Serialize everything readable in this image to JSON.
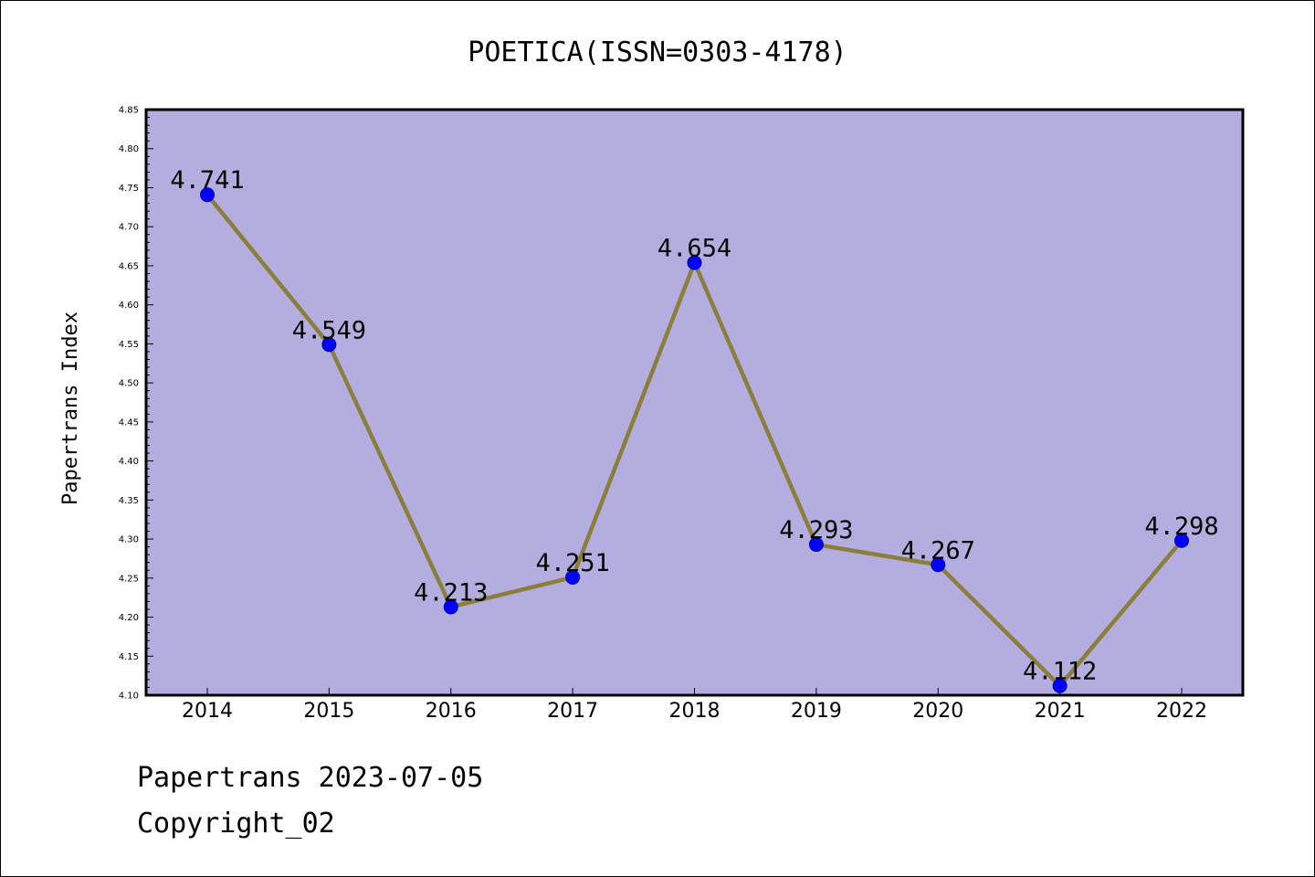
{
  "chart_data": {
    "type": "line",
    "title": "POETICA(ISSN=0303-4178)",
    "xlabel": "",
    "ylabel": "Papertrans Index",
    "categories": [
      "2014",
      "2015",
      "2016",
      "2017",
      "2018",
      "2019",
      "2020",
      "2021",
      "2022"
    ],
    "values": [
      4.741,
      4.549,
      4.213,
      4.251,
      4.654,
      4.293,
      4.267,
      4.112,
      4.298
    ],
    "data_labels": [
      "4.741",
      "4.549",
      "4.213",
      "4.251",
      "4.654",
      "4.293",
      "4.267",
      "4.112",
      "4.298"
    ],
    "ylim": [
      4.1,
      4.85
    ],
    "y_ticks": [
      "4.10",
      "4.15",
      "4.20",
      "4.25",
      "4.30",
      "4.35",
      "4.40",
      "4.45",
      "4.50",
      "4.55",
      "4.60",
      "4.65",
      "4.70",
      "4.75",
      "4.80",
      "4.85"
    ],
    "grid": false,
    "legend": "none",
    "colors": {
      "plot_background": "#b4aee0",
      "line": "#8b7d3a",
      "marker": "#0000ff",
      "axis": "#000000"
    }
  },
  "footer": {
    "date_text": "Papertrans 2023-07-05",
    "copyright_text": "Copyright_02"
  }
}
